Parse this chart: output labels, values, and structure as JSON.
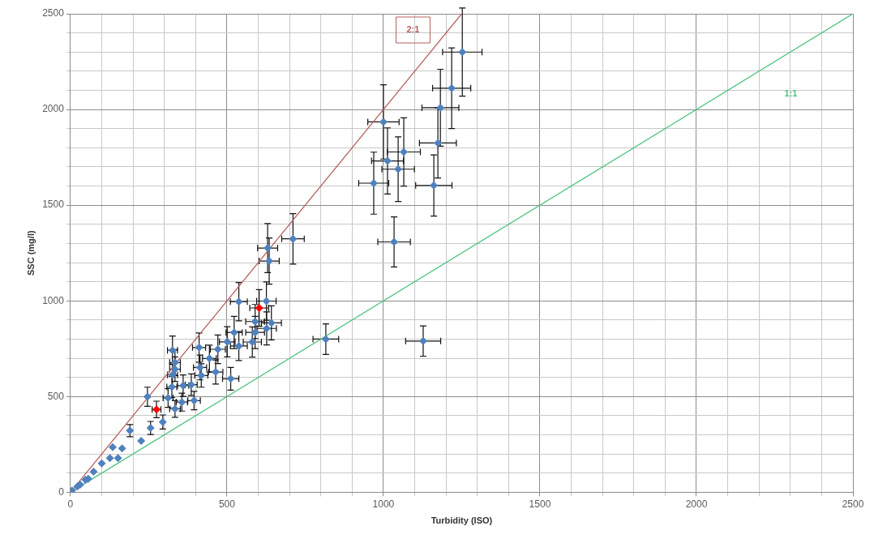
{
  "chart_data": {
    "type": "scatter",
    "xlabel": "Turbidity (ISO)",
    "ylabel": "SSC (mg/l)",
    "xlim": [
      0,
      2500
    ],
    "ylim": [
      0,
      2500
    ],
    "xticks": [
      0,
      {
        "value": 100,
        "label": null
      },
      {
        "value": 200,
        "label": null
      },
      {
        "value": 300,
        "label": null
      },
      {
        "value": 400,
        "label": null
      },
      500,
      {
        "value": 600,
        "label": null
      },
      {
        "value": 700,
        "label": null
      },
      {
        "value": 800,
        "label": null
      },
      {
        "value": 900,
        "label": null
      },
      1000,
      {
        "value": 1100,
        "label": null
      },
      {
        "value": 1200,
        "label": null
      },
      {
        "value": 1300,
        "label": null
      },
      {
        "value": 1400,
        "label": null
      },
      1500,
      {
        "value": 1600,
        "label": null
      },
      {
        "value": 1700,
        "label": null
      },
      {
        "value": 1800,
        "label": null
      },
      {
        "value": 1900,
        "label": null
      },
      2000,
      {
        "value": 2100,
        "label": null
      },
      {
        "value": 2200,
        "label": null
      },
      {
        "value": 2300,
        "label": null
      },
      {
        "value": 2400,
        "label": null
      },
      2500
    ],
    "yticks": [
      0,
      {
        "value": 100,
        "label": null
      },
      {
        "value": 200,
        "label": null
      },
      {
        "value": 300,
        "label": null
      },
      {
        "value": 400,
        "label": null
      },
      500,
      {
        "value": 600,
        "label": null
      },
      {
        "value": 700,
        "label": null
      },
      {
        "value": 800,
        "label": null
      },
      {
        "value": 900,
        "label": null
      },
      1000,
      {
        "value": 1100,
        "label": null
      },
      {
        "value": 1200,
        "label": null
      },
      {
        "value": 1300,
        "label": null
      },
      {
        "value": 1400,
        "label": null
      },
      1500,
      {
        "value": 1600,
        "label": null
      },
      {
        "value": 1700,
        "label": null
      },
      {
        "value": 1800,
        "label": null
      },
      {
        "value": 1900,
        "label": null
      },
      2000,
      {
        "value": 2100,
        "label": null
      },
      {
        "value": 2200,
        "label": null
      },
      {
        "value": 2300,
        "label": null
      },
      {
        "value": 2400,
        "label": null
      },
      2500
    ],
    "grid": true,
    "legend": false,
    "marker": "diamond",
    "series": [
      {
        "color": "#4f81bd",
        "x": [
          1252,
          1218,
          1182,
          1174,
          1000,
          1013,
          1047,
          1065,
          969,
          1034,
          1161,
          816,
          1127,
          711,
          630,
          635,
          626,
          590,
          642,
          627,
          590,
          581,
          538,
          523,
          538,
          501,
          471,
          411,
          444,
          464,
          414,
          418,
          512,
          326,
          334,
          326,
          334,
          324,
          360,
          386,
          395,
          356,
          334,
          312,
          246,
          295,
          256,
          190,
          226,
          165,
          135,
          152,
          126,
          100,
          74,
          57,
          48,
          22,
          31,
          5
        ],
        "values": [
          2300,
          2111,
          2009,
          1825,
          1935,
          1731,
          1688,
          1778,
          1615,
          1308,
          1603,
          800,
          790,
          1324,
          1276,
          1208,
          999,
          892,
          885,
          856,
          835,
          785,
          996,
          835,
          764,
          786,
          747,
          756,
          699,
          628,
          652,
          610,
          593,
          742,
          678,
          614,
          643,
          550,
          557,
          562,
          479,
          471,
          436,
          493,
          499,
          367,
          336,
          322,
          268,
          229,
          236,
          179,
          179,
          151,
          108,
          70,
          65,
          30,
          40,
          9
        ],
        "errors": [
          230,
          211,
          201,
          183,
          194,
          173,
          169,
          178,
          162,
          131,
          160,
          80,
          79,
          132,
          128,
          121,
          100,
          89,
          89,
          86,
          84,
          79,
          100,
          84,
          76,
          79,
          75,
          76,
          70,
          63,
          65,
          61,
          59,
          74,
          68,
          61,
          64,
          55,
          56,
          56,
          48,
          47,
          44,
          49,
          50,
          37,
          34,
          32,
          null,
          null,
          null,
          null,
          null,
          null,
          null,
          null,
          null,
          null,
          null,
          null
        ],
        "xerrors": [
          63,
          61,
          59,
          59,
          50,
          51,
          52,
          53,
          48,
          52,
          58,
          41,
          56,
          36,
          32,
          32,
          31,
          30,
          32,
          31,
          30,
          29,
          27,
          26,
          27,
          25,
          24,
          21,
          22,
          23,
          21,
          21,
          26,
          16,
          17,
          16,
          17,
          16,
          18,
          19,
          20,
          18,
          17,
          16,
          null,
          null,
          null,
          null,
          null,
          null,
          null,
          null,
          null,
          null,
          null,
          null,
          null,
          null,
          null,
          null
        ]
      },
      {
        "color": "#ff0000",
        "x": [
          275,
          603
        ],
        "values": [
          433,
          963
        ],
        "errors": [
          43,
          96
        ],
        "xerrors": [
          14,
          30
        ]
      },
      {
        "type": "line",
        "name": "2:1",
        "color": "#b5605c",
        "marker": "none",
        "x": [
          0,
          1250
        ],
        "values": [
          0,
          2500
        ]
      },
      {
        "type": "line",
        "name": "1:1",
        "color": "#4cc47f",
        "marker": "none",
        "x": [
          0,
          2500
        ],
        "values": [
          0,
          2500
        ]
      }
    ]
  }
}
